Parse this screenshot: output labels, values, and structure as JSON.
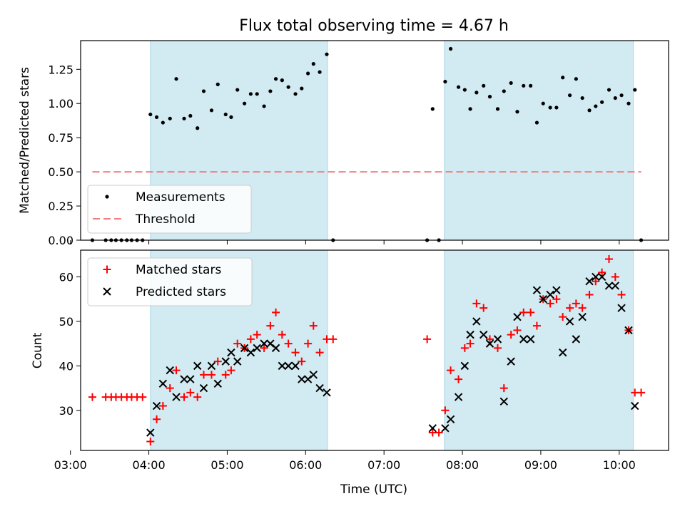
{
  "title": "Flux total observing time = 4.67 h",
  "colors": {
    "shade": "#add8e6",
    "measurement": "#000000",
    "threshold": "#f08080",
    "matched": "#ff0000",
    "predicted": "#000000"
  },
  "chart_data": [
    {
      "type": "scatter",
      "panel": "top",
      "ylabel": "Matched/Predicted stars",
      "xlim": [
        3.13,
        10.63
      ],
      "ylim": [
        0,
        1.46
      ],
      "yticks": [
        "0.00",
        "0.25",
        "0.50",
        "0.75",
        "1.00",
        "1.25"
      ],
      "shaded_intervals": [
        [
          4.02,
          6.28
        ],
        [
          7.77,
          10.18
        ]
      ],
      "legend": {
        "position": "lower-left",
        "entries": [
          "Measurements",
          "Threshold"
        ]
      },
      "threshold": {
        "name": "Threshold",
        "y": 0.5,
        "x_range": [
          3.28,
          10.28
        ]
      },
      "series": [
        {
          "name": "Measurements",
          "x": [
            3.28,
            3.45,
            3.52,
            3.58,
            3.65,
            3.72,
            3.78,
            3.85,
            3.92,
            4.02,
            4.1,
            4.18,
            4.27,
            4.35,
            4.45,
            4.53,
            4.62,
            4.7,
            4.8,
            4.88,
            4.98,
            5.05,
            5.13,
            5.22,
            5.3,
            5.38,
            5.47,
            5.55,
            5.62,
            5.7,
            5.78,
            5.87,
            5.95,
            6.03,
            6.1,
            6.18,
            6.27,
            6.35,
            7.55,
            7.62,
            7.7,
            7.78,
            7.85,
            7.95,
            8.03,
            8.1,
            8.18,
            8.27,
            8.35,
            8.45,
            8.53,
            8.62,
            8.7,
            8.78,
            8.87,
            8.95,
            9.03,
            9.12,
            9.2,
            9.28,
            9.37,
            9.45,
            9.53,
            9.62,
            9.7,
            9.78,
            9.87,
            9.95,
            10.03,
            10.12,
            10.2,
            10.28
          ],
          "y": [
            0,
            0,
            0,
            0,
            0,
            0,
            0,
            0,
            0,
            0.92,
            0.9,
            0.86,
            0.89,
            1.18,
            0.89,
            0.91,
            0.82,
            1.09,
            0.95,
            1.14,
            0.92,
            0.9,
            1.1,
            1.0,
            1.07,
            1.07,
            0.98,
            1.09,
            1.18,
            1.17,
            1.12,
            1.07,
            1.11,
            1.22,
            1.29,
            1.23,
            1.36,
            0,
            0,
            0.96,
            0,
            1.16,
            1.4,
            1.12,
            1.1,
            0.96,
            1.08,
            1.13,
            1.05,
            0.96,
            1.09,
            1.15,
            0.94,
            1.13,
            1.13,
            0.86,
            1.0,
            0.97,
            0.97,
            1.19,
            1.06,
            1.18,
            1.04,
            0.95,
            0.98,
            1.01,
            1.1,
            1.04,
            1.06,
            1.0,
            1.1,
            0
          ]
        }
      ]
    },
    {
      "type": "scatter",
      "panel": "bottom",
      "xlabel": "Time (UTC)",
      "ylabel": "Count",
      "xlim": [
        3.13,
        10.63
      ],
      "ylim": [
        21,
        66
      ],
      "xticks": [
        "03:00",
        "04:00",
        "05:00",
        "06:00",
        "07:00",
        "08:00",
        "09:00",
        "10:00"
      ],
      "yticks": [
        "30",
        "40",
        "50",
        "60"
      ],
      "shaded_intervals": [
        [
          4.02,
          6.28
        ],
        [
          7.77,
          10.18
        ]
      ],
      "legend": {
        "position": "upper-left",
        "entries": [
          "Matched stars",
          "Predicted stars"
        ]
      },
      "series": [
        {
          "name": "Matched stars",
          "marker": "plus",
          "x": [
            3.28,
            3.45,
            3.52,
            3.58,
            3.65,
            3.72,
            3.78,
            3.85,
            3.92,
            4.02,
            4.1,
            4.18,
            4.27,
            4.35,
            4.45,
            4.53,
            4.62,
            4.7,
            4.8,
            4.88,
            4.98,
            5.05,
            5.13,
            5.22,
            5.3,
            5.38,
            5.47,
            5.55,
            5.62,
            5.7,
            5.78,
            5.87,
            5.95,
            6.03,
            6.1,
            6.18,
            6.27,
            6.35,
            7.55,
            7.62,
            7.7,
            7.78,
            7.85,
            7.95,
            8.03,
            8.1,
            8.18,
            8.27,
            8.35,
            8.45,
            8.53,
            8.62,
            8.7,
            8.78,
            8.87,
            8.95,
            9.03,
            9.12,
            9.2,
            9.28,
            9.37,
            9.45,
            9.53,
            9.62,
            9.7,
            9.78,
            9.87,
            9.95,
            10.03,
            10.12,
            10.2,
            10.28
          ],
          "y": [
            33,
            33,
            33,
            33,
            33,
            33,
            33,
            33,
            33,
            23,
            28,
            31,
            35,
            39,
            33,
            34,
            33,
            38,
            38,
            41,
            38,
            39,
            45,
            44,
            46,
            47,
            44,
            49,
            52,
            47,
            45,
            43,
            41,
            45,
            49,
            43,
            46,
            46,
            46,
            25,
            25,
            30,
            39,
            37,
            44,
            45,
            54,
            53,
            46,
            44,
            35,
            47,
            48,
            52,
            52,
            49,
            55,
            54,
            55,
            51,
            53,
            54,
            53,
            56,
            59,
            61,
            64,
            60,
            56,
            48,
            34,
            34
          ]
        },
        {
          "name": "Predicted stars",
          "marker": "x",
          "x": [
            4.02,
            4.1,
            4.18,
            4.27,
            4.35,
            4.45,
            4.53,
            4.62,
            4.7,
            4.8,
            4.88,
            4.98,
            5.05,
            5.13,
            5.22,
            5.3,
            5.38,
            5.47,
            5.55,
            5.62,
            5.7,
            5.78,
            5.87,
            5.95,
            6.03,
            6.1,
            6.18,
            6.27,
            7.62,
            7.78,
            7.85,
            7.95,
            8.03,
            8.1,
            8.18,
            8.27,
            8.35,
            8.45,
            8.53,
            8.62,
            8.7,
            8.78,
            8.87,
            8.95,
            9.03,
            9.12,
            9.2,
            9.28,
            9.37,
            9.45,
            9.53,
            9.62,
            9.7,
            9.78,
            9.87,
            9.95,
            10.03,
            10.12,
            10.2
          ],
          "y": [
            25,
            31,
            36,
            39,
            33,
            37,
            37,
            40,
            35,
            40,
            36,
            41,
            43,
            41,
            44,
            43,
            44,
            45,
            45,
            44,
            40,
            40,
            40,
            37,
            37,
            38,
            35,
            34,
            26,
            26,
            28,
            33,
            40,
            47,
            50,
            47,
            45,
            46,
            32,
            41,
            51,
            46,
            46,
            57,
            55,
            56,
            57,
            43,
            50,
            46,
            51,
            59,
            60,
            60,
            58,
            58,
            53,
            48,
            31
          ]
        }
      ]
    }
  ]
}
